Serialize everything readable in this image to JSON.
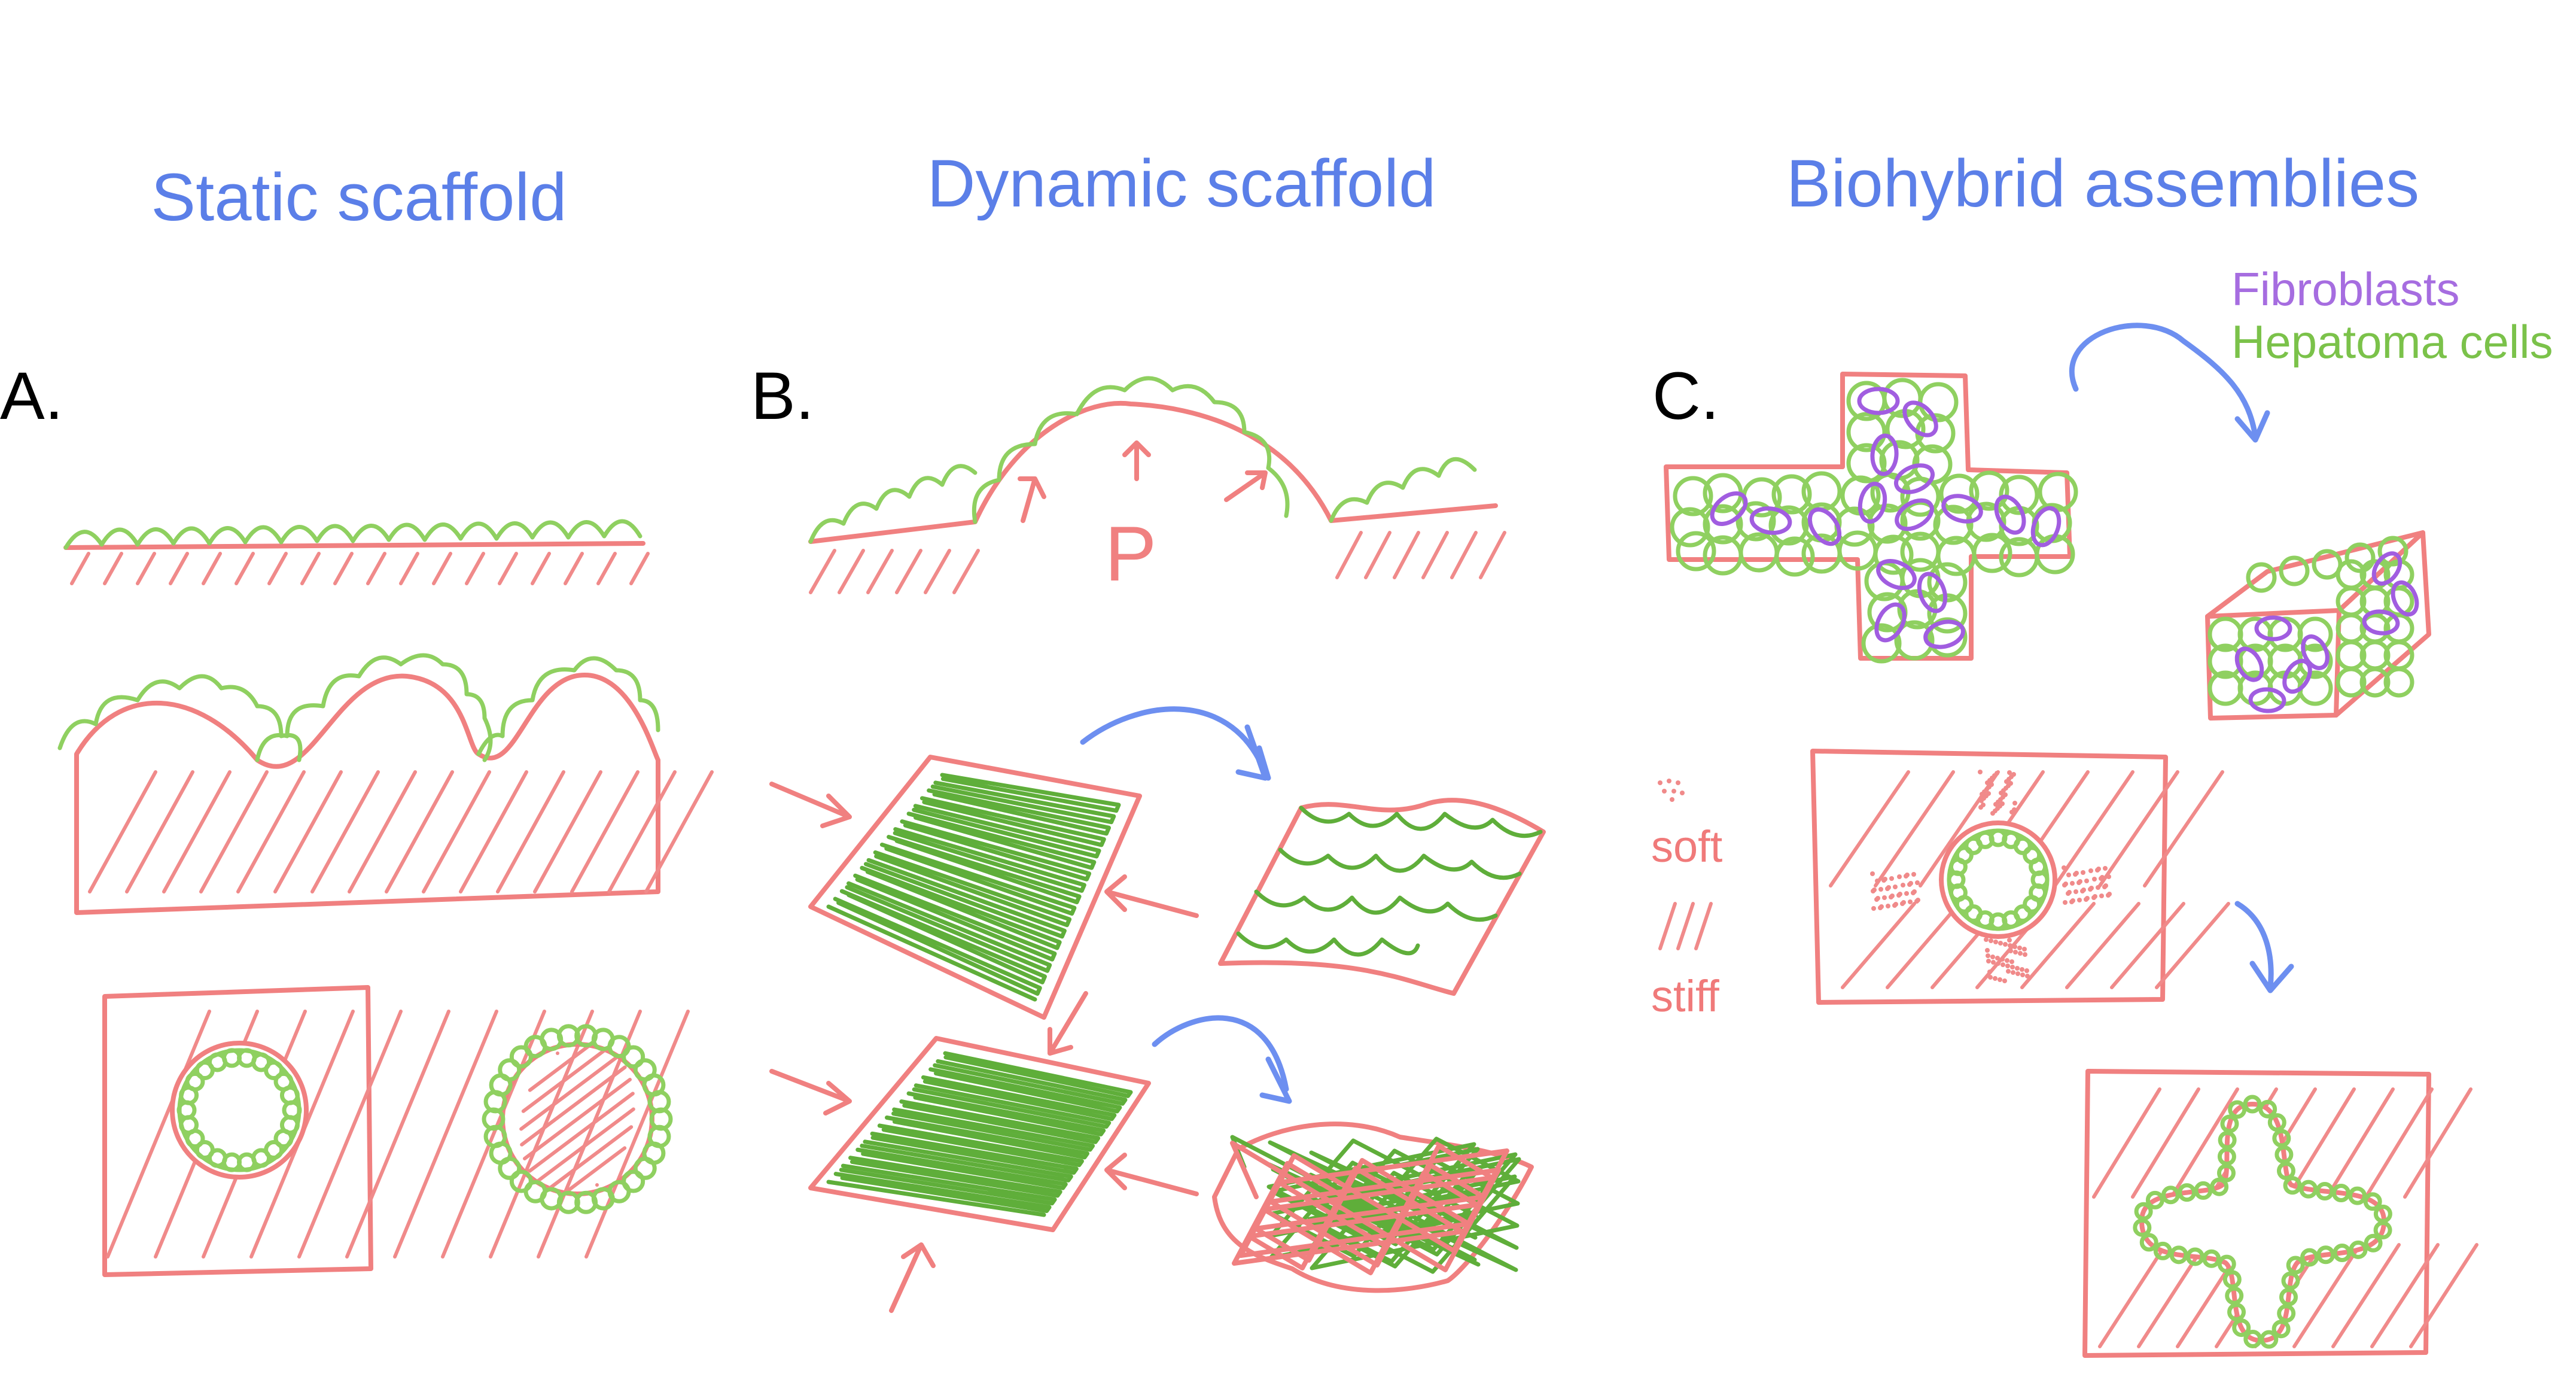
{
  "titles": {
    "a": "Static scaffold",
    "b": "Dynamic scaffold",
    "c": "Biohybrid assemblies"
  },
  "panel_letters": {
    "a": "A.",
    "b": "B.",
    "c": "C."
  },
  "labels": {
    "pressure": "P",
    "fibroblasts": "Fibroblasts",
    "hepatoma": "Hepatoma cells",
    "soft": "soft",
    "stiff": "stiff"
  },
  "colors": {
    "title_blue": "#5b7fe8",
    "scaffold_red": "#f08080",
    "cell_green": "#8fd060",
    "fibroblast_purple": "#a15de0",
    "arrow_blue": "#6d8ff0"
  }
}
